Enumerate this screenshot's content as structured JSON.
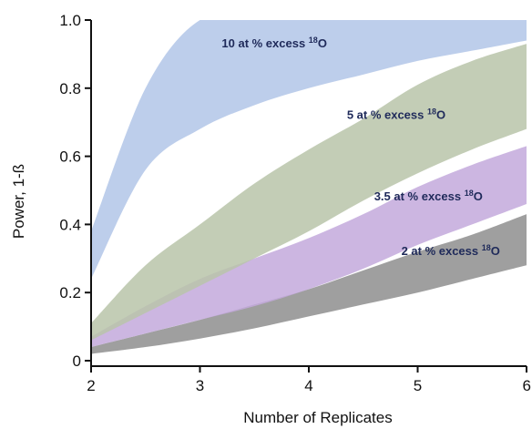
{
  "chart_data": {
    "type": "area",
    "title": "",
    "xlabel": "Number of Replicates",
    "ylabel": "Power, 1-ß",
    "xlim": [
      2,
      6
    ],
    "ylim": [
      0,
      1.0
    ],
    "x_ticks": [
      2,
      3,
      4,
      5,
      6
    ],
    "x_tick_labels": [
      "2",
      "3",
      "4",
      "5",
      "6"
    ],
    "y_ticks": [
      0,
      0.2,
      0.4,
      0.6,
      0.8,
      1.0
    ],
    "y_tick_labels": [
      "0",
      "0.2",
      "0.4",
      "0.6",
      "0.8",
      "1.0"
    ],
    "grid": false,
    "legend": "none",
    "x": [
      2,
      2.5,
      3,
      3.5,
      4,
      4.5,
      5,
      5.5,
      6
    ],
    "series": [
      {
        "name": "",
        "label_prefix": "2 at % excess ",
        "label_sup": "18",
        "label_suffix": "O",
        "color": "#8e8e8e",
        "lower": [
          0.02,
          0.04,
          0.065,
          0.095,
          0.13,
          0.165,
          0.2,
          0.24,
          0.28
        ],
        "upper": [
          0.04,
          0.08,
          0.12,
          0.165,
          0.21,
          0.265,
          0.32,
          0.37,
          0.43
        ]
      },
      {
        "name": "",
        "label_prefix": "3.5 at % excess ",
        "label_sup": "18",
        "label_suffix": "O",
        "color": "#c3a9dc",
        "lower": [
          0.04,
          0.08,
          0.12,
          0.16,
          0.21,
          0.27,
          0.34,
          0.4,
          0.46
        ],
        "upper": [
          0.07,
          0.16,
          0.24,
          0.3,
          0.36,
          0.43,
          0.51,
          0.575,
          0.63
        ]
      },
      {
        "name": "",
        "label_prefix": "5 at % excess ",
        "label_sup": "18",
        "label_suffix": "O",
        "color": "#b9c4a9",
        "lower": [
          0.06,
          0.14,
          0.22,
          0.3,
          0.38,
          0.47,
          0.55,
          0.62,
          0.68
        ],
        "upper": [
          0.11,
          0.28,
          0.4,
          0.52,
          0.62,
          0.71,
          0.81,
          0.88,
          0.93
        ]
      },
      {
        "name": "",
        "label_prefix": "10 at % excess ",
        "label_sup": "18",
        "label_suffix": "O",
        "color": "#a3bbe3",
        "lower": [
          0.24,
          0.56,
          0.68,
          0.75,
          0.8,
          0.84,
          0.88,
          0.91,
          0.94
        ],
        "upper": [
          0.38,
          0.8,
          1.0,
          1.0,
          1.0,
          1.0,
          1.0,
          1.0,
          1.0
        ]
      }
    ],
    "annotations": [
      {
        "series": 3,
        "x": 3.2,
        "y": 0.92
      },
      {
        "series": 2,
        "x": 4.35,
        "y": 0.71
      },
      {
        "series": 1,
        "x": 4.6,
        "y": 0.47
      },
      {
        "series": 0,
        "x": 4.85,
        "y": 0.31
      }
    ]
  }
}
